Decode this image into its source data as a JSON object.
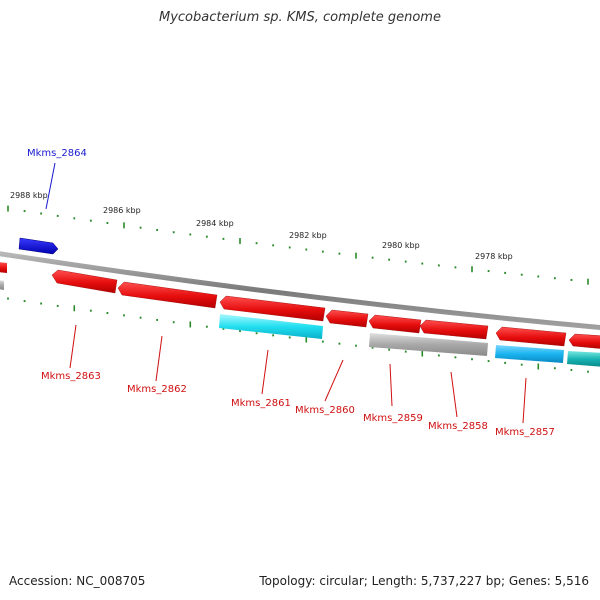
{
  "title": "Mycobacterium sp. KMS, complete genome",
  "footer": {
    "accession": "Accession: NC_008705",
    "summary": "Topology: circular; Length: 5,737,227 bp; Genes: 5,516"
  },
  "colors": {
    "backbone": "#8a8a8a",
    "tick": "#2a8a2a",
    "forward_gene": "#1a1ae6",
    "reverse_gene": "#e60d0d",
    "cyan_gene": "#22dff0",
    "gray_gene": "#a8a8a8",
    "sky_gene": "#1ab4f0",
    "teal_gene": "#18b4b4",
    "forward_label": "#1a1ad0",
    "reverse_label": "#d01010",
    "kbp_label": "#222222"
  },
  "kbp_labels": [
    "2988 kbp",
    "2986 kbp",
    "2984 kbp",
    "2982 kbp",
    "2980 kbp",
    "2978 kbp"
  ],
  "genes": [
    {
      "label": "Mkms_2864",
      "strand": "+",
      "color_key": "forward_gene"
    },
    {
      "label": "Mkms_2863",
      "strand": "-",
      "color_key": "reverse_gene"
    },
    {
      "label": "Mkms_2862",
      "strand": "-",
      "color_key": "reverse_gene"
    },
    {
      "label": "Mkms_2861",
      "strand": "-",
      "color_key": "reverse_gene"
    },
    {
      "label": "Mkms_2860",
      "strand": "-",
      "color_key": "reverse_gene"
    },
    {
      "label": "Mkms_2859",
      "strand": "-",
      "color_key": "reverse_gene"
    },
    {
      "label": "Mkms_2858",
      "strand": "-",
      "color_key": "reverse_gene"
    },
    {
      "label": "Mkms_2857",
      "strand": "-",
      "color_key": "reverse_gene"
    }
  ]
}
